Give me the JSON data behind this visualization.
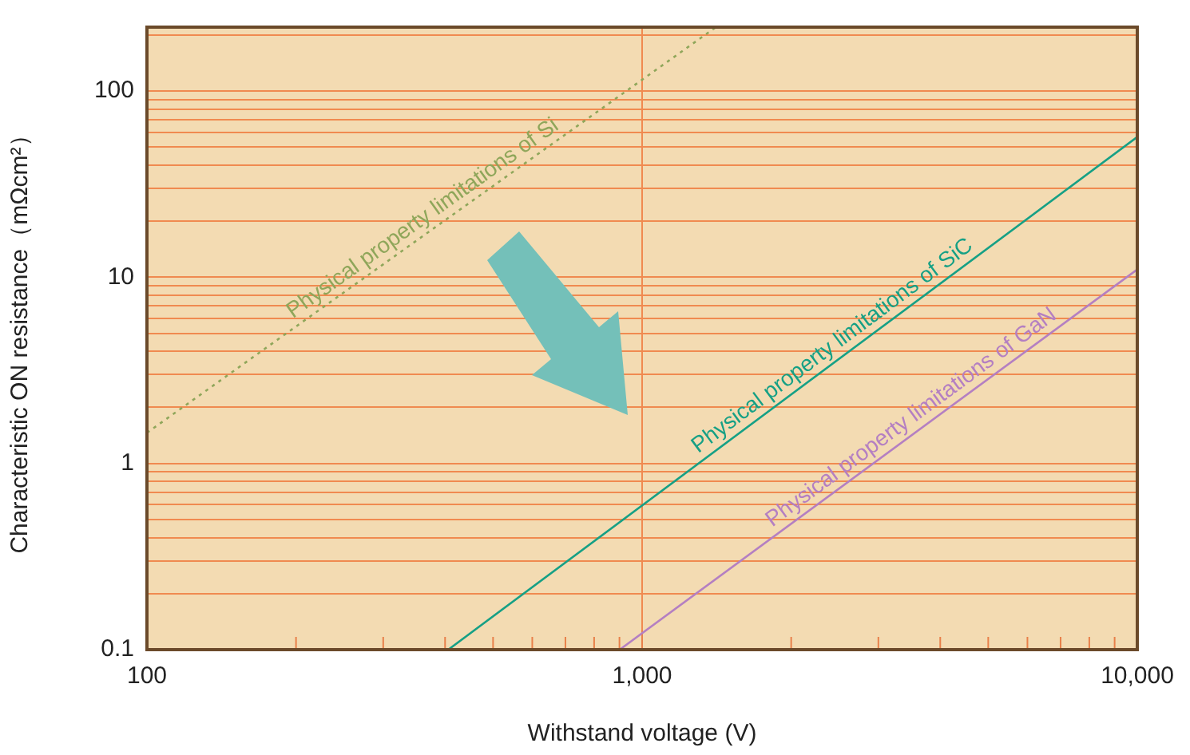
{
  "chart_data": {
    "type": "line",
    "xlabel": "Withstand voltage (V)",
    "ylabel": "Characteristic ON resistance（mΩcm²）",
    "log": "xy",
    "grid": "y",
    "legend": false,
    "marker": "none",
    "xlim": [
      100,
      10000
    ],
    "xticks": [
      {
        "value": 100,
        "label": "100"
      },
      {
        "value": 200,
        "label": null
      },
      {
        "value": 300,
        "label": null
      },
      {
        "value": 400,
        "label": null
      },
      {
        "value": 500,
        "label": null
      },
      {
        "value": 600,
        "label": null
      },
      {
        "value": 700,
        "label": null
      },
      {
        "value": 800,
        "label": null
      },
      {
        "value": 900,
        "label": null
      },
      {
        "value": 1000,
        "label": "1,000"
      },
      {
        "value": 2000,
        "label": null
      },
      {
        "value": 3000,
        "label": null
      },
      {
        "value": 4000,
        "label": null
      },
      {
        "value": 5000,
        "label": null
      },
      {
        "value": 6000,
        "label": null
      },
      {
        "value": 7000,
        "label": null
      },
      {
        "value": 8000,
        "label": null
      },
      {
        "value": 9000,
        "label": null
      },
      {
        "value": 10000,
        "label": "10,000"
      }
    ],
    "ylim": [
      0.1,
      220
    ],
    "yticks": [
      0.1,
      {
        "value": 0.2,
        "label": null
      },
      {
        "value": 0.3,
        "label": null
      },
      {
        "value": 0.4,
        "label": null
      },
      {
        "value": 0.5,
        "label": null
      },
      {
        "value": 0.6,
        "label": null
      },
      {
        "value": 0.7,
        "label": null
      },
      {
        "value": 0.8,
        "label": null
      },
      {
        "value": 0.9,
        "label": null
      },
      1,
      {
        "value": 2,
        "label": null
      },
      {
        "value": 3,
        "label": null
      },
      {
        "value": 4,
        "label": null
      },
      {
        "value": 5,
        "label": null
      },
      {
        "value": 6,
        "label": null
      },
      {
        "value": 7,
        "label": null
      },
      {
        "value": 8,
        "label": null
      },
      {
        "value": 9,
        "label": null
      },
      10,
      {
        "value": 20,
        "label": null
      },
      {
        "value": 30,
        "label": null
      },
      {
        "value": 40,
        "label": null
      },
      {
        "value": 50,
        "label": null
      },
      {
        "value": 60,
        "label": null
      },
      {
        "value": 70,
        "label": null
      },
      {
        "value": 80,
        "label": null
      },
      {
        "value": 90,
        "label": null
      },
      100,
      {
        "value": 200,
        "label": null
      }
    ],
    "ref_lines": [
      {
        "axis": "x",
        "value": 1000,
        "color": "#f08a50"
      }
    ],
    "series": [
      {
        "name": "Physical property limitations of Si",
        "color": "#8fa65a",
        "x": [
          100,
          1406
        ],
        "values": [
          1.46,
          219
        ],
        "line_style": "dotted"
      },
      {
        "name": "Physical property limitations of SiC",
        "color": "#16a085",
        "x": [
          406,
          10000
        ],
        "values": [
          0.1,
          56.6
        ],
        "line_style": "solid"
      },
      {
        "name": "Physical property limitations of GaN",
        "color": "#b47fc2",
        "x": [
          901,
          10000
        ],
        "values": [
          0.1,
          11
        ],
        "line_style": "solid"
      }
    ]
  }
}
